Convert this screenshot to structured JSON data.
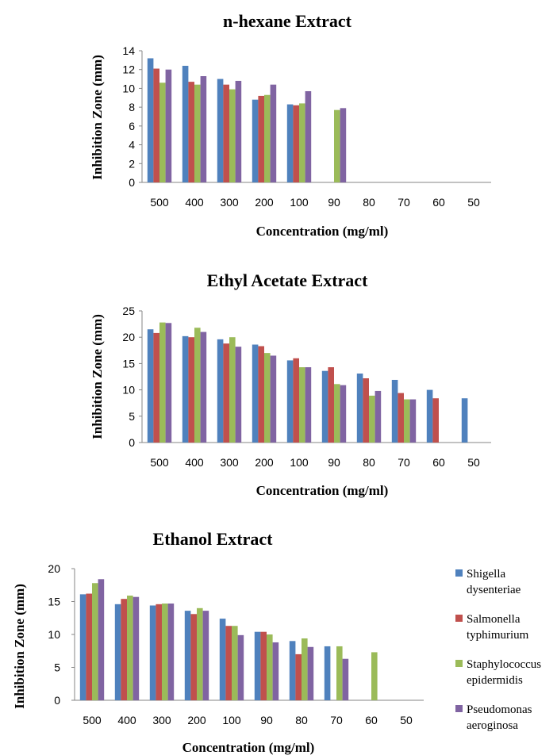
{
  "legend": [
    {
      "name": "Shigella dysenteriae",
      "lines": [
        "Shigella",
        "dysenteriae"
      ],
      "color": "#4F81BD"
    },
    {
      "name": "Salmonella typhimurium",
      "lines": [
        "Salmonella",
        "typhimurium"
      ],
      "color": "#C0504D"
    },
    {
      "name": "Staphylococcus epidermidis",
      "lines": [
        "Staphylococcus",
        "epidermidis"
      ],
      "color": "#9BBB59"
    },
    {
      "name": "Pseudomonas aeroginosa",
      "lines": [
        "Pseudomonas",
        "aeroginosa"
      ],
      "color": "#8064A2"
    }
  ],
  "chart_data": [
    {
      "type": "bar",
      "title": "n-hexane Extract",
      "xlabel": "Concentration (mg/ml)",
      "ylabel": "Inhibition Zone (mm)",
      "categories": [
        "500",
        "400",
        "300",
        "200",
        "100",
        "90",
        "80",
        "70",
        "60",
        "50"
      ],
      "ylim": [
        0,
        14
      ],
      "yticks": [
        0,
        2,
        4,
        6,
        8,
        10,
        12,
        14
      ],
      "grid": false,
      "series": [
        {
          "name": "Shigella dysenteriae",
          "values": [
            13.2,
            12.4,
            11.0,
            8.8,
            8.3,
            0,
            0,
            0,
            0,
            0
          ]
        },
        {
          "name": "Salmonella typhimurium",
          "values": [
            12.1,
            10.7,
            10.4,
            9.2,
            8.2,
            0,
            0,
            0,
            0,
            0
          ]
        },
        {
          "name": "Staphylococcus epidermidis",
          "values": [
            10.6,
            10.4,
            9.9,
            9.3,
            8.4,
            7.7,
            0,
            0,
            0,
            0
          ]
        },
        {
          "name": "Pseudomonas aeroginosa",
          "values": [
            12.0,
            11.3,
            10.8,
            10.4,
            9.7,
            7.9,
            0,
            0,
            0,
            0
          ]
        }
      ]
    },
    {
      "type": "bar",
      "title": "Ethyl Acetate Extract",
      "xlabel": "Concentration (mg/ml)",
      "ylabel": "Inhibition Zone (mm)",
      "categories": [
        "500",
        "400",
        "300",
        "200",
        "100",
        "90",
        "80",
        "70",
        "60",
        "50"
      ],
      "ylim": [
        0,
        25
      ],
      "yticks": [
        0,
        5,
        10,
        15,
        20,
        25
      ],
      "grid": false,
      "series": [
        {
          "name": "Shigella dysenteriae",
          "values": [
            21.5,
            20.2,
            19.6,
            18.6,
            15.6,
            13.6,
            13.1,
            11.9,
            10.0,
            8.4
          ]
        },
        {
          "name": "Salmonella typhimurium",
          "values": [
            20.8,
            20.0,
            18.8,
            18.3,
            16.0,
            14.3,
            12.2,
            9.4,
            8.4,
            0
          ]
        },
        {
          "name": "Staphylococcus epidermidis",
          "values": [
            22.8,
            21.8,
            20.0,
            17.0,
            14.3,
            11.1,
            8.9,
            8.2,
            0,
            0
          ]
        },
        {
          "name": "Pseudomonas aeroginosa",
          "values": [
            22.7,
            21.0,
            18.2,
            16.5,
            14.3,
            10.9,
            9.8,
            8.2,
            0,
            0
          ]
        }
      ]
    },
    {
      "type": "bar",
      "title": "Ethanol Extract",
      "xlabel": "Concentration (mg/ml)",
      "ylabel": "Inhibition Zone (mm)",
      "categories": [
        "500",
        "400",
        "300",
        "200",
        "100",
        "90",
        "80",
        "70",
        "60",
        "50"
      ],
      "ylim": [
        0,
        20
      ],
      "yticks": [
        0,
        5,
        10,
        15,
        20
      ],
      "grid": false,
      "legend_position": "right",
      "series": [
        {
          "name": "Shigella dysenteriae",
          "values": [
            16.1,
            14.6,
            14.4,
            13.6,
            12.4,
            10.4,
            9.0,
            8.2,
            0,
            0
          ]
        },
        {
          "name": "Salmonella typhimurium",
          "values": [
            16.2,
            15.4,
            14.6,
            13.1,
            11.3,
            10.4,
            7.0,
            0,
            0,
            0
          ]
        },
        {
          "name": "Staphylococcus epidermidis",
          "values": [
            17.8,
            15.9,
            14.7,
            14.0,
            11.3,
            10.0,
            9.4,
            8.2,
            7.3,
            0
          ]
        },
        {
          "name": "Pseudomonas aeroginosa",
          "values": [
            18.4,
            15.7,
            14.7,
            13.6,
            9.9,
            8.8,
            8.1,
            6.3,
            0,
            0
          ]
        }
      ]
    }
  ]
}
